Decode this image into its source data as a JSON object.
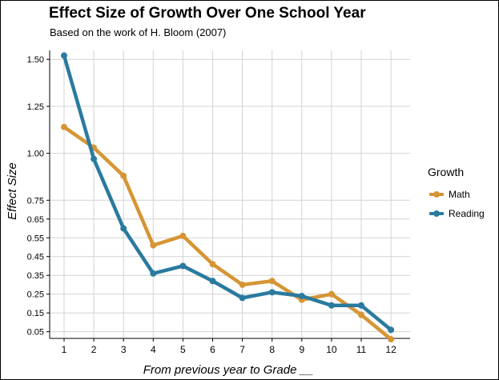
{
  "colors": {
    "math": "#D69535",
    "reading": "#2A7A9F",
    "grid": "#D3D3D3"
  },
  "chart_data": {
    "type": "line",
    "title": "Effect Size of Growth Over One School Year",
    "subtitle": "Based on the work of H. Bloom (2007)",
    "xlabel": "From previous year to Grade __",
    "ylabel": "Effect Size",
    "x": [
      1,
      2,
      3,
      4,
      5,
      6,
      7,
      8,
      9,
      10,
      11,
      12
    ],
    "x_ticks": [
      "1",
      "2",
      "3",
      "4",
      "5",
      "6",
      "7",
      "8",
      "9",
      "10",
      "11",
      "12"
    ],
    "y_ticks": [
      "1.50",
      "1.25",
      "1.00",
      "0.75",
      "0.65",
      "0.55",
      "0.45",
      "0.35",
      "0.25",
      "0.15",
      "0.05"
    ],
    "ylim": [
      0.0,
      1.58
    ],
    "grid": true,
    "legend_title": "Growth",
    "legend_position": "right",
    "series": [
      {
        "name": "Math",
        "color": "#D69535",
        "values": [
          1.14,
          1.03,
          0.88,
          0.51,
          0.56,
          0.41,
          0.3,
          0.32,
          0.22,
          0.25,
          0.14,
          0.01
        ]
      },
      {
        "name": "Reading",
        "color": "#2A7A9F",
        "values": [
          1.52,
          0.97,
          0.6,
          0.36,
          0.4,
          0.32,
          0.23,
          0.26,
          0.24,
          0.19,
          0.19,
          0.06
        ]
      }
    ]
  }
}
